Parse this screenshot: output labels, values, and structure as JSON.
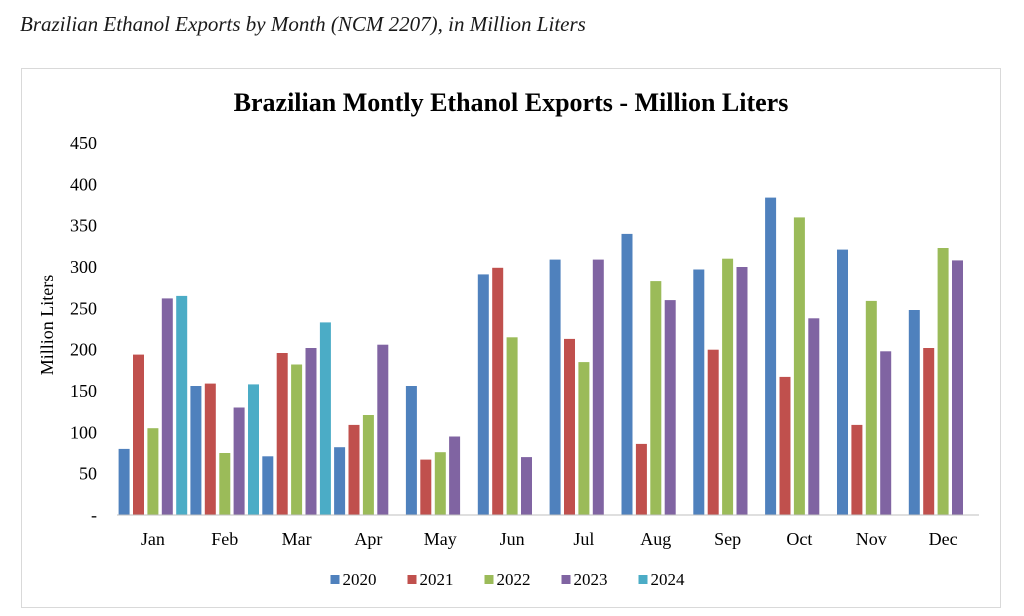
{
  "caption": "Brazilian Ethanol Exports by Month (NCM 2207), in Million Liters",
  "chart_data": {
    "type": "bar",
    "title": "Brazilian Montly Ethanol Exports - Million Liters",
    "xlabel": "",
    "ylabel": "Million Liters",
    "ylim": [
      0,
      450
    ],
    "yticks": [
      "-",
      "50",
      "100",
      "150",
      "200",
      "250",
      "300",
      "350",
      "400",
      "450"
    ],
    "grid": false,
    "legend_position": "bottom",
    "categories": [
      "Jan",
      "Feb",
      "Mar",
      "Apr",
      "May",
      "Jun",
      "Jul",
      "Aug",
      "Sep",
      "Oct",
      "Nov",
      "Dec"
    ],
    "series": [
      {
        "name": "2020",
        "color": "#4F81BD",
        "values": [
          80,
          156,
          71,
          82,
          156,
          291,
          309,
          340,
          297,
          384,
          321,
          248
        ]
      },
      {
        "name": "2021",
        "color": "#C0504D",
        "values": [
          194,
          159,
          196,
          109,
          67,
          299,
          213,
          86,
          200,
          167,
          109,
          202
        ]
      },
      {
        "name": "2022",
        "color": "#9BBB59",
        "values": [
          105,
          75,
          182,
          121,
          76,
          215,
          185,
          283,
          310,
          360,
          259,
          323
        ]
      },
      {
        "name": "2023",
        "color": "#8064A2",
        "values": [
          262,
          130,
          202,
          206,
          95,
          70,
          309,
          260,
          300,
          238,
          198,
          308
        ]
      },
      {
        "name": "2024",
        "color": "#4BACC6",
        "values": [
          265,
          158,
          233,
          null,
          null,
          null,
          null,
          null,
          null,
          null,
          null,
          null
        ]
      }
    ]
  }
}
